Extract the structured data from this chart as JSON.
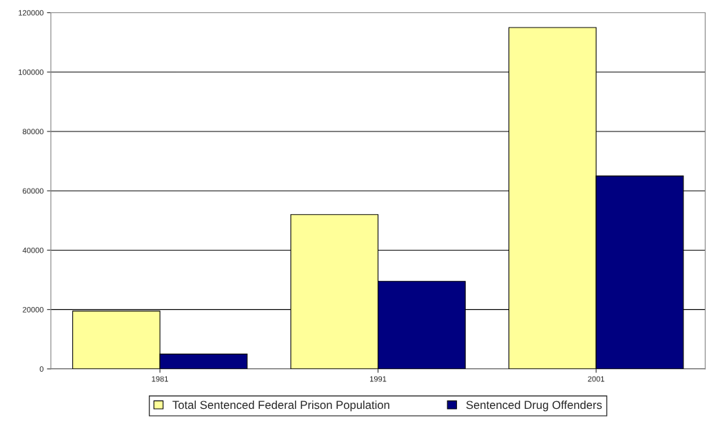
{
  "chart_data": {
    "type": "bar",
    "categories": [
      "1981",
      "1991",
      "2001"
    ],
    "series": [
      {
        "name": "Total Sentenced Federal Prison Population",
        "color": "#ffff99",
        "values": [
          19500,
          52000,
          115000
        ]
      },
      {
        "name": "Sentenced Drug Offenders",
        "color": "#000080",
        "values": [
          5000,
          29500,
          65000
        ]
      }
    ],
    "ylim": [
      0,
      120000
    ],
    "yticks": [
      0,
      20000,
      40000,
      60000,
      80000,
      100000,
      120000
    ],
    "grid": "y",
    "legend": "bottom"
  }
}
